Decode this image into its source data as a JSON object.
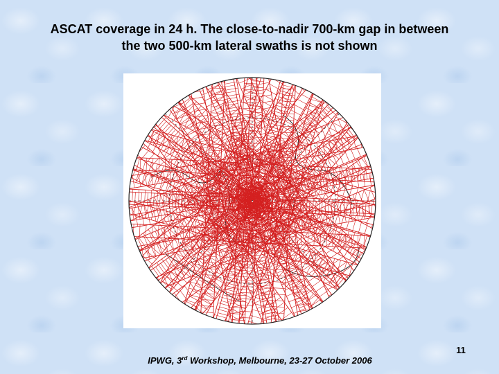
{
  "slide": {
    "title_line1": "ASCAT coverage in 24 h. The close-to-nadir 700-km gap in between",
    "title_line2": "the two 500-km lateral swaths is not shown",
    "page_number": "11",
    "footer_before": "IPWG, 3",
    "footer_sup": "rd",
    "footer_after": " Workshop, Melbourne, 23-27 October 2006"
  },
  "figure": {
    "swath_color": "#d42020",
    "coast_color": "#222222"
  }
}
